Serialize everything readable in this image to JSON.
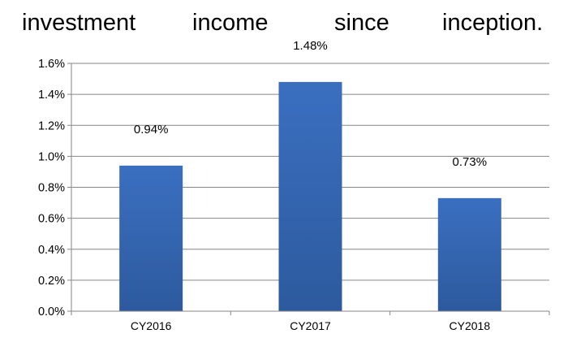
{
  "header_text": {
    "words": [
      "investment",
      "income",
      "since",
      "inception."
    ]
  },
  "chart_data": {
    "type": "bar",
    "categories": [
      "CY2016",
      "CY2017",
      "CY2018"
    ],
    "values": [
      0.94,
      1.48,
      0.73
    ],
    "data_labels": [
      "0.94%",
      "1.48%",
      "0.73%"
    ],
    "y_ticks": [
      "0.0%",
      "0.2%",
      "0.4%",
      "0.6%",
      "0.8%",
      "1.0%",
      "1.2%",
      "1.4%",
      "1.6%"
    ],
    "ylim": [
      0,
      1.6
    ],
    "grid": true,
    "legend": "none",
    "bar_color": "#3a6fc0",
    "bar_color_dark": "#2d5a9e",
    "grid_color": "#868686"
  }
}
